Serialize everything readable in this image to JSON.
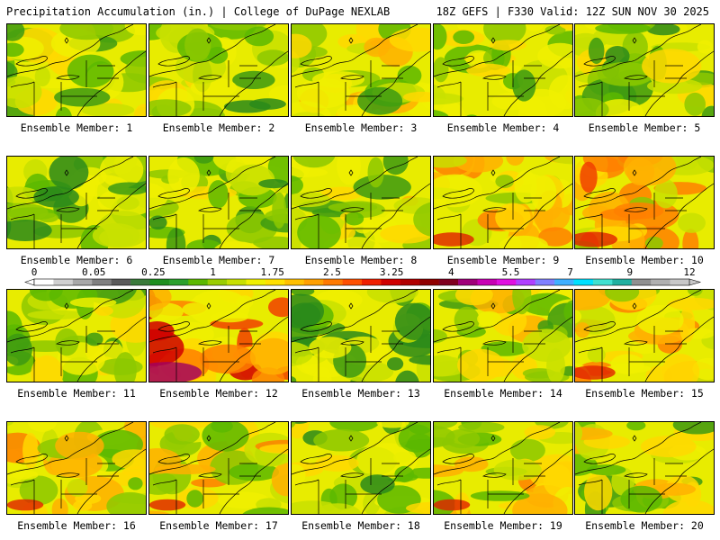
{
  "header": {
    "title": "Precipitation Accumulation (in.) | College of DuPage NEXLAB",
    "run_info": "18Z GEFS | F330 Valid: 12Z SUN NOV 30 2025"
  },
  "panels": [
    {
      "label": "Ensemble Member: 1",
      "wetness": 0.3
    },
    {
      "label": "Ensemble Member: 2",
      "wetness": 0.25
    },
    {
      "label": "Ensemble Member: 3",
      "wetness": 0.4
    },
    {
      "label": "Ensemble Member: 4",
      "wetness": 0.3
    },
    {
      "label": "Ensemble Member: 5",
      "wetness": 0.25
    },
    {
      "label": "Ensemble Member: 6",
      "wetness": 0.15
    },
    {
      "label": "Ensemble Member: 7",
      "wetness": 0.2
    },
    {
      "label": "Ensemble Member: 8",
      "wetness": 0.35
    },
    {
      "label": "Ensemble Member: 9",
      "wetness": 0.55
    },
    {
      "label": "Ensemble Member: 10",
      "wetness": 0.6
    },
    {
      "label": "Ensemble Member: 11",
      "wetness": 0.3
    },
    {
      "label": "Ensemble Member: 12",
      "wetness": 0.85
    },
    {
      "label": "Ensemble Member: 13",
      "wetness": 0.1
    },
    {
      "label": "Ensemble Member: 14",
      "wetness": 0.35
    },
    {
      "label": "Ensemble Member: 15",
      "wetness": 0.55
    },
    {
      "label": "Ensemble Member: 16",
      "wetness": 0.45
    },
    {
      "label": "Ensemble Member: 17",
      "wetness": 0.45
    },
    {
      "label": "Ensemble Member: 18",
      "wetness": 0.2
    },
    {
      "label": "Ensemble Member: 19",
      "wetness": 0.45
    },
    {
      "label": "Ensemble Member: 20",
      "wetness": 0.35
    }
  ],
  "colorbar": {
    "tick_labels": [
      "0",
      "0.05",
      "0.25",
      "1",
      "1.75",
      "2.5",
      "3.25",
      "4",
      "5.5",
      "7",
      "9",
      "12"
    ],
    "colors": [
      "#ffffff",
      "#d0d0d0",
      "#a8a8a8",
      "#808080",
      "#5a5a5a",
      "#3a7a3a",
      "#1f8f1f",
      "#2ca02c",
      "#5cb800",
      "#9acd00",
      "#c8e000",
      "#f0f000",
      "#ffe000",
      "#ffc000",
      "#ffa000",
      "#ff7a00",
      "#ff5000",
      "#f02000",
      "#d00000",
      "#b00000",
      "#900000",
      "#800020",
      "#a0007a",
      "#c800b4",
      "#e010e0",
      "#b040ff",
      "#8080ff",
      "#40b0ff",
      "#00e0ff",
      "#40e0d0",
      "#20b0a0",
      "#909090",
      "#b0b0b0",
      "#c8c8c8"
    ]
  }
}
